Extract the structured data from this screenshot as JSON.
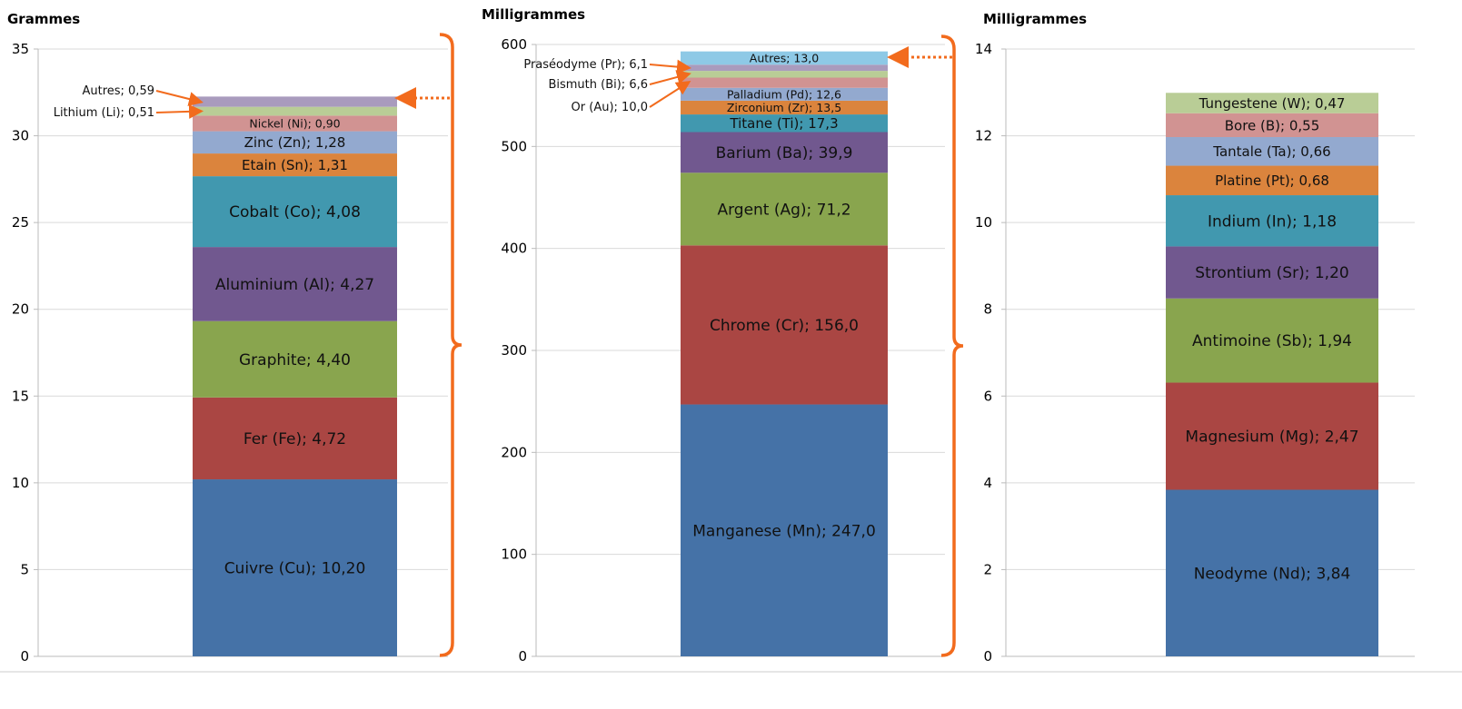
{
  "chart_data": [
    {
      "type": "bar",
      "stacked": true,
      "ylabel": "Grammes",
      "ylim": [
        0,
        35
      ],
      "yticks": [
        0,
        5,
        10,
        15,
        20,
        25,
        30,
        35
      ],
      "grid": true,
      "series": [
        {
          "name": "Cuivre (Cu)",
          "value": 10.2,
          "label": "Cuivre (Cu); 10,20",
          "color": "#4572A7"
        },
        {
          "name": "Fer (Fe)",
          "value": 4.72,
          "label": "Fer (Fe); 4,72",
          "color": "#AA4643"
        },
        {
          "name": "Graphite",
          "value": 4.4,
          "label": "Graphite; 4,40",
          "color": "#89A54E"
        },
        {
          "name": "Aluminium (Al)",
          "value": 4.27,
          "label": "Aluminium (Al); 4,27",
          "color": "#71588F"
        },
        {
          "name": "Cobalt (Co)",
          "value": 4.08,
          "label": "Cobalt (Co); 4,08",
          "color": "#4198AF"
        },
        {
          "name": "Etain (Sn)",
          "value": 1.31,
          "label": "Etain (Sn); 1,31",
          "color": "#DB843D"
        },
        {
          "name": "Zinc (Zn)",
          "value": 1.28,
          "label": "Zinc (Zn); 1,28",
          "color": "#93A9CF"
        },
        {
          "name": "Nickel (Ni)",
          "value": 0.9,
          "label": "Nickel (Ni); 0,90",
          "color": "#D19392"
        },
        {
          "name": "Lithium (Li)",
          "value": 0.51,
          "label": "Lithium (Li); 0,51",
          "color": "#B9CD96",
          "outside": true
        },
        {
          "name": "Autres",
          "value": 0.59,
          "label": "Autres; 0,59",
          "color": "#A99BBD",
          "outside": true
        }
      ]
    },
    {
      "type": "bar",
      "stacked": true,
      "ylabel": "Milligrammes",
      "ylim": [
        0,
        600
      ],
      "yticks": [
        0,
        100,
        200,
        300,
        400,
        500,
        600
      ],
      "grid": true,
      "series": [
        {
          "name": "Manganese (Mn)",
          "value": 247.0,
          "label": "Manganese (Mn); 247,0",
          "color": "#4572A7"
        },
        {
          "name": "Chrome (Cr)",
          "value": 156.0,
          "label": "Chrome (Cr); 156,0",
          "color": "#AA4643"
        },
        {
          "name": "Argent (Ag)",
          "value": 71.2,
          "label": "Argent (Ag); 71,2",
          "color": "#89A54E"
        },
        {
          "name": "Barium (Ba)",
          "value": 39.9,
          "label": "Barium (Ba); 39,9",
          "color": "#71588F"
        },
        {
          "name": "Titane (Ti)",
          "value": 17.3,
          "label": "Titane (Ti); 17,3",
          "color": "#4198AF"
        },
        {
          "name": "Zirconium (Zr)",
          "value": 13.5,
          "label": "Zirconium (Zr); 13,5",
          "color": "#DB843D"
        },
        {
          "name": "Palladium (Pd)",
          "value": 12.6,
          "label": "Palladium (Pd); 12,6",
          "color": "#93A9CF"
        },
        {
          "name": "Or (Au)",
          "value": 10.0,
          "label": "Or (Au); 10,0",
          "color": "#D19392",
          "outside": true
        },
        {
          "name": "Bismuth (Bi)",
          "value": 6.6,
          "label": "Bismuth (Bi); 6,6",
          "color": "#B9CD96",
          "outside": true
        },
        {
          "name": "Praséodyme (Pr)",
          "value": 6.1,
          "label": "Praséodyme (Pr); 6,1",
          "color": "#A99BBD",
          "outside": true
        },
        {
          "name": "Autres",
          "value": 13.0,
          "label": "Autres; 13,0",
          "color": "#8EC9E6"
        }
      ]
    },
    {
      "type": "bar",
      "stacked": true,
      "ylabel": "Milligrammes",
      "ylim": [
        0,
        14
      ],
      "yticks": [
        0,
        2,
        4,
        6,
        8,
        10,
        12,
        14
      ],
      "grid": true,
      "series": [
        {
          "name": "Neodyme (Nd)",
          "value": 3.84,
          "label": "Neodyme (Nd); 3,84",
          "color": "#4572A7"
        },
        {
          "name": "Magnesium (Mg)",
          "value": 2.47,
          "label": "Magnesium (Mg); 2,47",
          "color": "#AA4643"
        },
        {
          "name": "Antimoine (Sb)",
          "value": 1.94,
          "label": "Antimoine (Sb); 1,94",
          "color": "#89A54E"
        },
        {
          "name": "Strontium (Sr)",
          "value": 1.2,
          "label": "Strontium (Sr); 1,20",
          "color": "#71588F"
        },
        {
          "name": "Indium (In)",
          "value": 1.18,
          "label": "Indium (In); 1,18",
          "color": "#4198AF"
        },
        {
          "name": "Platine (Pt)",
          "value": 0.68,
          "label": "Platine (Pt); 0,68",
          "color": "#DB843D"
        },
        {
          "name": "Tantale (Ta)",
          "value": 0.66,
          "label": "Tantale (Ta); 0,66",
          "color": "#93A9CF"
        },
        {
          "name": "Bore (B)",
          "value": 0.55,
          "label": "Bore (B); 0,55",
          "color": "#D19392"
        },
        {
          "name": "Tungestene (W)",
          "value": 0.47,
          "label": "Tungestene (W); 0,47",
          "color": "#B9CD96"
        }
      ]
    }
  ],
  "accent_color": "#F26B1D"
}
